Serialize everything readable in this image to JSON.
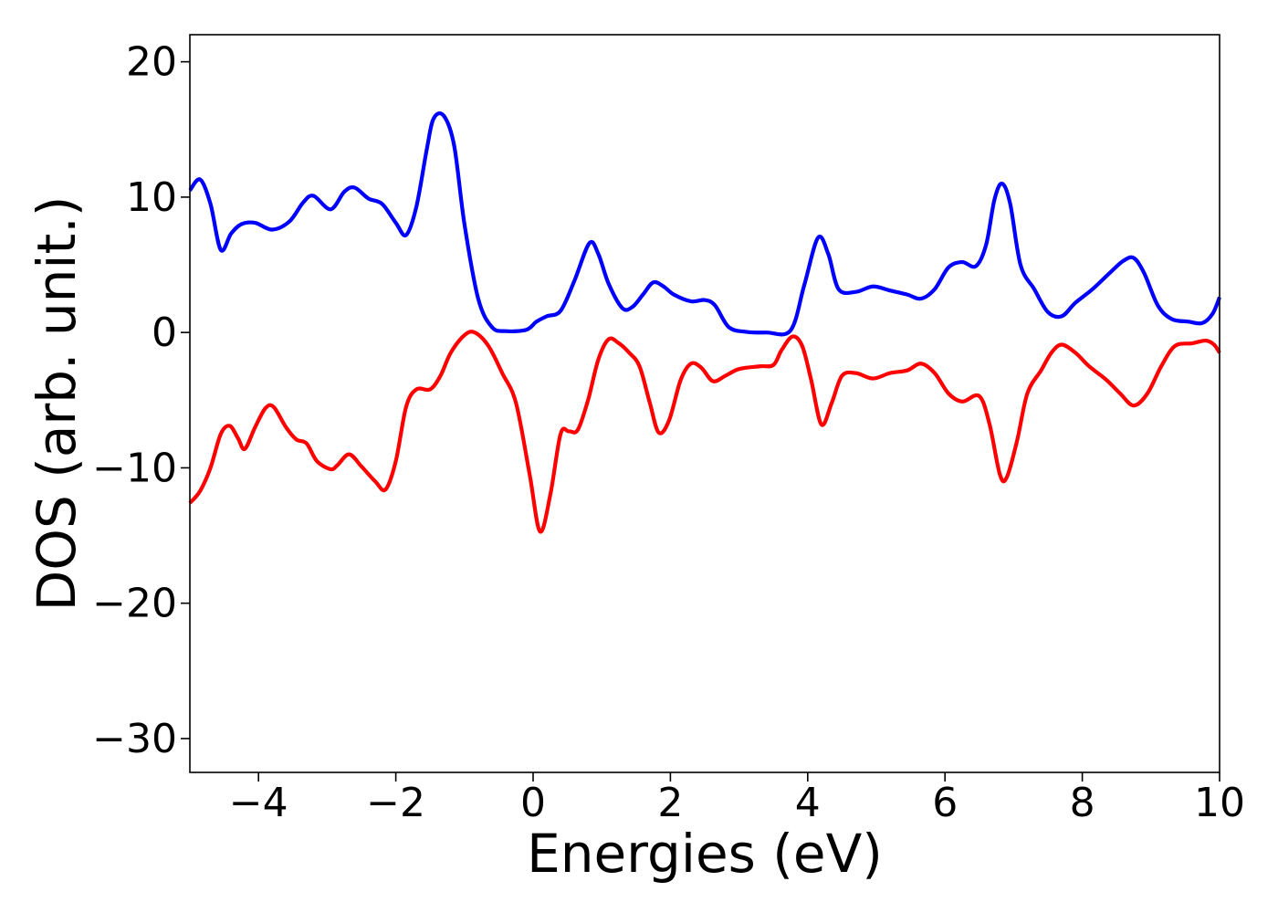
{
  "chart_data": {
    "type": "line",
    "title": "",
    "xlabel": "Energies (eV)",
    "ylabel": "DOS (arb. unit.)",
    "xlim": [
      -5,
      10
    ],
    "ylim": [
      -32.5,
      22
    ],
    "grid": false,
    "legend": "none",
    "x_ticks": [
      -4,
      -2,
      0,
      2,
      4,
      6,
      8,
      10
    ],
    "y_ticks": [
      -30,
      -20,
      -10,
      0,
      10,
      20
    ],
    "x_tick_labels": [
      "−4",
      "−2",
      "0",
      "2",
      "4",
      "6",
      "8",
      "10"
    ],
    "y_tick_labels": [
      "−30",
      "−20",
      "−10",
      "0",
      "10",
      "20"
    ],
    "series": [
      {
        "color": "#0000ff",
        "points": [
          [
            -5.0,
            10.5
          ],
          [
            -4.85,
            11.3
          ],
          [
            -4.7,
            9.5
          ],
          [
            -4.55,
            6.1
          ],
          [
            -4.4,
            7.3
          ],
          [
            -4.25,
            8.0
          ],
          [
            -4.05,
            8.1
          ],
          [
            -3.8,
            7.6
          ],
          [
            -3.55,
            8.2
          ],
          [
            -3.35,
            9.6
          ],
          [
            -3.2,
            10.1
          ],
          [
            -2.95,
            9.1
          ],
          [
            -2.75,
            10.4
          ],
          [
            -2.6,
            10.7
          ],
          [
            -2.4,
            9.9
          ],
          [
            -2.2,
            9.5
          ],
          [
            -2.0,
            8.1
          ],
          [
            -1.85,
            7.2
          ],
          [
            -1.7,
            9.3
          ],
          [
            -1.55,
            13.5
          ],
          [
            -1.45,
            15.8
          ],
          [
            -1.3,
            16.0
          ],
          [
            -1.15,
            13.8
          ],
          [
            -1.0,
            8.0
          ],
          [
            -0.8,
            2.5
          ],
          [
            -0.6,
            0.4
          ],
          [
            -0.4,
            0.1
          ],
          [
            -0.1,
            0.2
          ],
          [
            0.05,
            0.8
          ],
          [
            0.2,
            1.2
          ],
          [
            0.4,
            1.6
          ],
          [
            0.6,
            3.8
          ],
          [
            0.82,
            6.6
          ],
          [
            0.95,
            5.8
          ],
          [
            1.1,
            3.6
          ],
          [
            1.3,
            1.8
          ],
          [
            1.45,
            1.9
          ],
          [
            1.6,
            2.8
          ],
          [
            1.75,
            3.7
          ],
          [
            1.9,
            3.4
          ],
          [
            2.05,
            2.8
          ],
          [
            2.3,
            2.3
          ],
          [
            2.5,
            2.4
          ],
          [
            2.65,
            2.0
          ],
          [
            2.85,
            0.4
          ],
          [
            3.1,
            0.05
          ],
          [
            3.4,
            0.0
          ],
          [
            3.75,
            0.15
          ],
          [
            3.95,
            3.5
          ],
          [
            4.15,
            7.0
          ],
          [
            4.3,
            5.8
          ],
          [
            4.45,
            3.2
          ],
          [
            4.7,
            3.0
          ],
          [
            4.95,
            3.4
          ],
          [
            5.2,
            3.1
          ],
          [
            5.45,
            2.8
          ],
          [
            5.65,
            2.5
          ],
          [
            5.85,
            3.2
          ],
          [
            6.05,
            4.8
          ],
          [
            6.25,
            5.2
          ],
          [
            6.45,
            4.9
          ],
          [
            6.6,
            6.5
          ],
          [
            6.72,
            9.8
          ],
          [
            6.83,
            11.0
          ],
          [
            6.95,
            9.5
          ],
          [
            7.1,
            5.0
          ],
          [
            7.3,
            3.2
          ],
          [
            7.5,
            1.5
          ],
          [
            7.7,
            1.2
          ],
          [
            7.9,
            2.2
          ],
          [
            8.15,
            3.2
          ],
          [
            8.4,
            4.4
          ],
          [
            8.6,
            5.3
          ],
          [
            8.75,
            5.5
          ],
          [
            8.9,
            4.4
          ],
          [
            9.1,
            2.0
          ],
          [
            9.3,
            1.0
          ],
          [
            9.55,
            0.8
          ],
          [
            9.75,
            0.7
          ],
          [
            9.9,
            1.4
          ],
          [
            10.0,
            2.6
          ]
        ]
      },
      {
        "color": "#ff0000",
        "points": [
          [
            -5.0,
            -12.6
          ],
          [
            -4.85,
            -11.7
          ],
          [
            -4.7,
            -10.0
          ],
          [
            -4.55,
            -7.5
          ],
          [
            -4.42,
            -6.9
          ],
          [
            -4.3,
            -7.8
          ],
          [
            -4.2,
            -8.6
          ],
          [
            -4.05,
            -7.0
          ],
          [
            -3.9,
            -5.6
          ],
          [
            -3.78,
            -5.5
          ],
          [
            -3.6,
            -7.0
          ],
          [
            -3.45,
            -7.9
          ],
          [
            -3.3,
            -8.2
          ],
          [
            -3.15,
            -9.5
          ],
          [
            -2.95,
            -10.1
          ],
          [
            -2.85,
            -9.8
          ],
          [
            -2.68,
            -9.0
          ],
          [
            -2.5,
            -9.9
          ],
          [
            -2.3,
            -11.0
          ],
          [
            -2.15,
            -11.6
          ],
          [
            -2.0,
            -9.5
          ],
          [
            -1.85,
            -5.5
          ],
          [
            -1.7,
            -4.2
          ],
          [
            -1.5,
            -4.2
          ],
          [
            -1.35,
            -3.2
          ],
          [
            -1.2,
            -1.5
          ],
          [
            -1.0,
            -0.2
          ],
          [
            -0.85,
            0.0
          ],
          [
            -0.65,
            -1.0
          ],
          [
            -0.45,
            -3.0
          ],
          [
            -0.25,
            -5.2
          ],
          [
            -0.05,
            -10.5
          ],
          [
            0.1,
            -14.7
          ],
          [
            0.25,
            -12.0
          ],
          [
            0.4,
            -7.5
          ],
          [
            0.52,
            -7.3
          ],
          [
            0.65,
            -7.2
          ],
          [
            0.8,
            -5.0
          ],
          [
            0.95,
            -2.0
          ],
          [
            1.1,
            -0.5
          ],
          [
            1.25,
            -0.8
          ],
          [
            1.4,
            -1.5
          ],
          [
            1.55,
            -2.5
          ],
          [
            1.7,
            -5.2
          ],
          [
            1.83,
            -7.4
          ],
          [
            1.98,
            -6.5
          ],
          [
            2.15,
            -3.5
          ],
          [
            2.3,
            -2.3
          ],
          [
            2.45,
            -2.6
          ],
          [
            2.62,
            -3.6
          ],
          [
            2.8,
            -3.2
          ],
          [
            3.0,
            -2.7
          ],
          [
            3.3,
            -2.5
          ],
          [
            3.5,
            -2.4
          ],
          [
            3.62,
            -1.3
          ],
          [
            3.78,
            -0.3
          ],
          [
            3.92,
            -1.0
          ],
          [
            4.05,
            -3.5
          ],
          [
            4.2,
            -6.8
          ],
          [
            4.35,
            -5.2
          ],
          [
            4.5,
            -3.2
          ],
          [
            4.7,
            -3.0
          ],
          [
            4.95,
            -3.4
          ],
          [
            5.2,
            -3.0
          ],
          [
            5.45,
            -2.8
          ],
          [
            5.65,
            -2.3
          ],
          [
            5.85,
            -3.0
          ],
          [
            6.05,
            -4.5
          ],
          [
            6.25,
            -5.1
          ],
          [
            6.5,
            -4.7
          ],
          [
            6.65,
            -6.8
          ],
          [
            6.8,
            -10.5
          ],
          [
            6.9,
            -10.7
          ],
          [
            7.05,
            -8.0
          ],
          [
            7.2,
            -4.5
          ],
          [
            7.4,
            -2.8
          ],
          [
            7.55,
            -1.5
          ],
          [
            7.7,
            -0.9
          ],
          [
            7.9,
            -1.5
          ],
          [
            8.1,
            -2.5
          ],
          [
            8.35,
            -3.5
          ],
          [
            8.55,
            -4.5
          ],
          [
            8.75,
            -5.4
          ],
          [
            8.95,
            -4.5
          ],
          [
            9.15,
            -2.5
          ],
          [
            9.35,
            -1.0
          ],
          [
            9.6,
            -0.8
          ],
          [
            9.8,
            -0.6
          ],
          [
            9.92,
            -0.9
          ],
          [
            10.0,
            -1.5
          ]
        ]
      }
    ]
  }
}
